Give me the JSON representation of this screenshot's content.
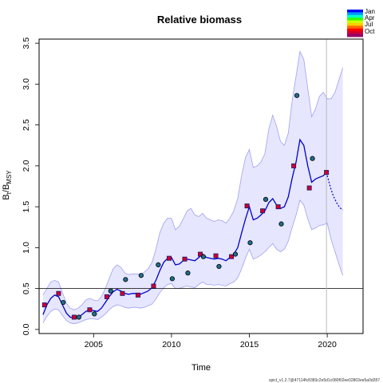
{
  "chart_data": {
    "type": "line",
    "title": "Relative biomass",
    "xlabel": "Time",
    "ylabel_main": "B",
    "ylabel_sub1": "t",
    "ylabel_mid": "/B",
    "ylabel_sub2": "MSY",
    "xlim": [
      2001.5,
      2022.3
    ],
    "ylim": [
      -0.05,
      3.55
    ],
    "xticks": [
      2005,
      2010,
      2015,
      2020
    ],
    "yticks": [
      0.0,
      0.5,
      1.0,
      1.5,
      2.0,
      2.5,
      3.0,
      3.5
    ],
    "reference_line_y": 0.5,
    "vertical_line_x": 2019.95,
    "band_color": "#e6e6ff",
    "band_edge_color": "#a0a0f0",
    "line_color": "#0000cc",
    "point_fill": "#1f6e8c",
    "legend": {
      "placement": "top-right",
      "labels": [
        "Jan",
        "Apr",
        "Jul",
        "Oct"
      ],
      "colors": [
        "#0000ff",
        "#0099ff",
        "#00ffcc",
        "#33ff00",
        "#ccff00",
        "#ffcc00",
        "#ff6600",
        "#ff0000",
        "#cc0033",
        "#990066"
      ]
    },
    "footer": "spict_v1.2.7@47114fc8383c2e5d1c080f02ee02803ee5a0d287",
    "series": [
      {
        "role": "estimate",
        "x": [
          2001.75,
          2002.0,
          2002.25,
          2002.5,
          2002.75,
          2003.0,
          2003.25,
          2003.5,
          2003.75,
          2004.0,
          2004.25,
          2004.5,
          2004.75,
          2005.0,
          2005.25,
          2005.5,
          2005.75,
          2006.0,
          2006.25,
          2006.5,
          2006.75,
          2007.0,
          2007.25,
          2007.5,
          2007.75,
          2008.0,
          2008.25,
          2008.5,
          2008.75,
          2009.0,
          2009.25,
          2009.5,
          2009.75,
          2010.0,
          2010.25,
          2010.5,
          2010.75,
          2011.0,
          2011.25,
          2011.5,
          2011.75,
          2012.0,
          2012.25,
          2012.5,
          2012.75,
          2013.0,
          2013.25,
          2013.5,
          2013.75,
          2014.0,
          2014.25,
          2014.5,
          2014.75,
          2015.0,
          2015.25,
          2015.5,
          2015.75,
          2016.0,
          2016.25,
          2016.5,
          2016.75,
          2017.0,
          2017.25,
          2017.5,
          2017.75,
          2018.0,
          2018.25,
          2018.5,
          2018.75,
          2019.0,
          2019.25,
          2019.5,
          2019.75,
          2019.95
        ],
        "y": [
          0.18,
          0.3,
          0.38,
          0.42,
          0.4,
          0.3,
          0.2,
          0.15,
          0.14,
          0.15,
          0.18,
          0.22,
          0.24,
          0.23,
          0.22,
          0.26,
          0.33,
          0.4,
          0.46,
          0.49,
          0.47,
          0.44,
          0.43,
          0.44,
          0.44,
          0.43,
          0.45,
          0.47,
          0.51,
          0.6,
          0.72,
          0.82,
          0.87,
          0.88,
          0.79,
          0.8,
          0.84,
          0.86,
          0.85,
          0.84,
          0.88,
          0.92,
          0.88,
          0.87,
          0.86,
          0.87,
          0.86,
          0.84,
          0.88,
          0.92,
          1.0,
          1.18,
          1.35,
          1.5,
          1.34,
          1.36,
          1.4,
          1.45,
          1.55,
          1.6,
          1.52,
          1.48,
          1.5,
          1.62,
          1.85,
          2.05,
          2.32,
          2.25,
          2.0,
          1.8,
          1.84,
          1.86,
          1.88,
          1.92
        ]
      },
      {
        "role": "forecast",
        "x": [
          2019.95,
          2020.2,
          2020.4,
          2020.6,
          2020.8,
          2021.0
        ],
        "y": [
          1.92,
          1.74,
          1.63,
          1.55,
          1.49,
          1.46
        ]
      },
      {
        "role": "upper_ci",
        "x": [
          2001.75,
          2002.0,
          2002.25,
          2002.5,
          2002.75,
          2003.0,
          2003.25,
          2003.5,
          2003.75,
          2004.0,
          2004.25,
          2004.5,
          2004.75,
          2005.0,
          2005.25,
          2005.5,
          2005.75,
          2006.0,
          2006.25,
          2006.5,
          2006.75,
          2007.0,
          2007.25,
          2007.5,
          2007.75,
          2008.0,
          2008.25,
          2008.5,
          2008.75,
          2009.0,
          2009.25,
          2009.5,
          2009.75,
          2010.0,
          2010.25,
          2010.5,
          2010.75,
          2011.0,
          2011.25,
          2011.5,
          2011.75,
          2012.0,
          2012.25,
          2012.5,
          2012.75,
          2013.0,
          2013.25,
          2013.5,
          2013.75,
          2014.0,
          2014.25,
          2014.5,
          2014.75,
          2015.0,
          2015.25,
          2015.5,
          2015.75,
          2016.0,
          2016.25,
          2016.5,
          2016.75,
          2017.0,
          2017.25,
          2017.5,
          2017.75,
          2018.0,
          2018.25,
          2018.5,
          2018.75,
          2019.0,
          2019.25,
          2019.5,
          2019.75,
          2020.0,
          2020.25,
          2020.5,
          2020.75,
          2021.0
        ],
        "y": [
          0.42,
          0.5,
          0.58,
          0.6,
          0.58,
          0.45,
          0.32,
          0.26,
          0.24,
          0.26,
          0.3,
          0.36,
          0.38,
          0.36,
          0.35,
          0.4,
          0.5,
          0.62,
          0.74,
          0.79,
          0.76,
          0.69,
          0.67,
          0.68,
          0.68,
          0.67,
          0.7,
          0.74,
          0.82,
          0.98,
          1.18,
          1.3,
          1.36,
          1.36,
          1.22,
          1.26,
          1.35,
          1.45,
          1.48,
          1.4,
          1.38,
          1.42,
          1.36,
          1.34,
          1.32,
          1.34,
          1.33,
          1.3,
          1.36,
          1.45,
          1.6,
          1.88,
          2.1,
          2.2,
          1.98,
          2.0,
          2.05,
          2.15,
          2.45,
          2.62,
          2.48,
          2.3,
          2.25,
          2.4,
          2.8,
          3.1,
          3.4,
          3.3,
          2.95,
          2.6,
          2.7,
          2.85,
          2.9,
          2.82,
          2.82,
          2.9,
          3.05,
          3.2
        ]
      },
      {
        "role": "lower_ci",
        "x": [
          2001.75,
          2002.0,
          2002.25,
          2002.5,
          2002.75,
          2003.0,
          2003.25,
          2003.5,
          2003.75,
          2004.0,
          2004.25,
          2004.5,
          2004.75,
          2005.0,
          2005.25,
          2005.5,
          2005.75,
          2006.0,
          2006.25,
          2006.5,
          2006.75,
          2007.0,
          2007.25,
          2007.5,
          2007.75,
          2008.0,
          2008.25,
          2008.5,
          2008.75,
          2009.0,
          2009.25,
          2009.5,
          2009.75,
          2010.0,
          2010.25,
          2010.5,
          2010.75,
          2011.0,
          2011.25,
          2011.5,
          2011.75,
          2012.0,
          2012.25,
          2012.5,
          2012.75,
          2013.0,
          2013.25,
          2013.5,
          2013.75,
          2014.0,
          2014.25,
          2014.5,
          2014.75,
          2015.0,
          2015.25,
          2015.5,
          2015.75,
          2016.0,
          2016.25,
          2016.5,
          2016.75,
          2017.0,
          2017.25,
          2017.5,
          2017.75,
          2018.0,
          2018.25,
          2018.5,
          2018.75,
          2019.0,
          2019.25,
          2019.5,
          2019.75,
          2020.0,
          2020.25,
          2020.5,
          2020.75,
          2021.0
        ],
        "y": [
          0.08,
          0.16,
          0.22,
          0.25,
          0.24,
          0.17,
          0.11,
          0.08,
          0.07,
          0.08,
          0.1,
          0.12,
          0.13,
          0.13,
          0.12,
          0.15,
          0.19,
          0.24,
          0.28,
          0.3,
          0.29,
          0.27,
          0.26,
          0.27,
          0.27,
          0.26,
          0.27,
          0.29,
          0.31,
          0.37,
          0.45,
          0.51,
          0.55,
          0.56,
          0.5,
          0.5,
          0.52,
          0.53,
          0.52,
          0.51,
          0.55,
          0.58,
          0.55,
          0.55,
          0.54,
          0.55,
          0.54,
          0.53,
          0.56,
          0.58,
          0.63,
          0.74,
          0.87,
          0.98,
          0.86,
          0.88,
          0.91,
          0.95,
          1.0,
          1.05,
          0.98,
          0.95,
          0.98,
          1.08,
          1.25,
          1.4,
          1.58,
          1.52,
          1.35,
          1.22,
          1.24,
          1.27,
          1.28,
          1.3,
          1.1,
          0.95,
          0.8,
          0.66
        ]
      }
    ],
    "observations": [
      {
        "x": 2001.85,
        "y": 0.3,
        "month": "Oct"
      },
      {
        "x": 2002.75,
        "y": 0.44,
        "month": "Oct"
      },
      {
        "x": 2003.05,
        "y": 0.33,
        "month": "Jan"
      },
      {
        "x": 2003.75,
        "y": 0.15,
        "month": "Oct"
      },
      {
        "x": 2004.05,
        "y": 0.15,
        "month": "Jan"
      },
      {
        "x": 2004.75,
        "y": 0.24,
        "month": "Oct"
      },
      {
        "x": 2005.05,
        "y": 0.19,
        "month": "Jan"
      },
      {
        "x": 2005.85,
        "y": 0.4,
        "month": "Oct"
      },
      {
        "x": 2006.1,
        "y": 0.47,
        "month": "Jan"
      },
      {
        "x": 2006.85,
        "y": 0.44,
        "month": "Oct"
      },
      {
        "x": 2007.05,
        "y": 0.61,
        "month": "Jan"
      },
      {
        "x": 2007.85,
        "y": 0.42,
        "month": "Oct"
      },
      {
        "x": 2008.05,
        "y": 0.66,
        "month": "Jan"
      },
      {
        "x": 2008.85,
        "y": 0.53,
        "month": "Oct"
      },
      {
        "x": 2009.15,
        "y": 0.79,
        "month": "Jan"
      },
      {
        "x": 2009.85,
        "y": 0.87,
        "month": "Oct"
      },
      {
        "x": 2010.05,
        "y": 0.62,
        "month": "Jan"
      },
      {
        "x": 2010.85,
        "y": 0.86,
        "month": "Oct"
      },
      {
        "x": 2011.05,
        "y": 0.69,
        "month": "Jan"
      },
      {
        "x": 2011.85,
        "y": 0.92,
        "month": "Oct"
      },
      {
        "x": 2012.05,
        "y": 0.89,
        "month": "Jan"
      },
      {
        "x": 2012.85,
        "y": 0.9,
        "month": "Oct"
      },
      {
        "x": 2013.05,
        "y": 0.77,
        "month": "Jan"
      },
      {
        "x": 2013.85,
        "y": 0.89,
        "month": "Oct"
      },
      {
        "x": 2014.1,
        "y": 0.92,
        "month": "Jan"
      },
      {
        "x": 2014.85,
        "y": 1.51,
        "month": "Oct"
      },
      {
        "x": 2015.05,
        "y": 1.06,
        "month": "Jan"
      },
      {
        "x": 2015.85,
        "y": 1.45,
        "month": "Oct"
      },
      {
        "x": 2016.05,
        "y": 1.59,
        "month": "Jan"
      },
      {
        "x": 2016.85,
        "y": 1.5,
        "month": "Oct"
      },
      {
        "x": 2017.05,
        "y": 1.29,
        "month": "Jan"
      },
      {
        "x": 2017.85,
        "y": 2.0,
        "month": "Oct"
      },
      {
        "x": 2018.05,
        "y": 2.86,
        "month": "Jan"
      },
      {
        "x": 2018.85,
        "y": 1.73,
        "month": "Oct"
      },
      {
        "x": 2019.05,
        "y": 2.09,
        "month": "Jan"
      },
      {
        "x": 2019.95,
        "y": 1.92,
        "month": "Oct"
      }
    ]
  }
}
